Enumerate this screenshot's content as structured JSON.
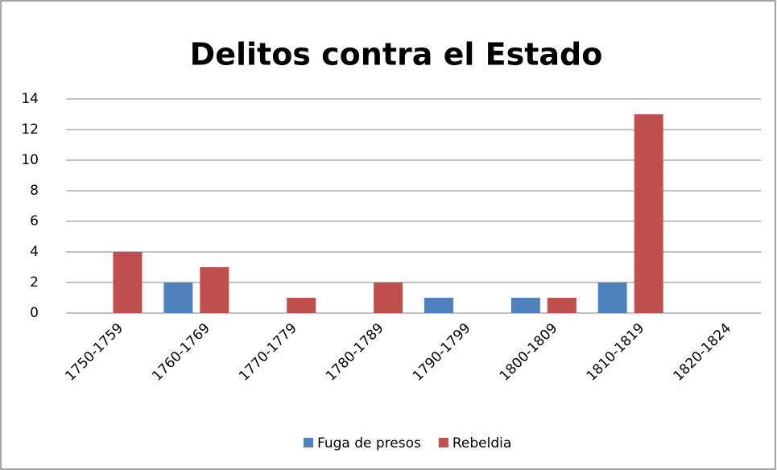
{
  "chart_data": {
    "type": "bar",
    "title": "Delitos contra el Estado",
    "categories": [
      "1750-1759",
      "1760-1769",
      "1770-1779",
      "1780-1789",
      "1790-1799",
      "1800-1809",
      "1810-1819",
      "1820-1824"
    ],
    "series": [
      {
        "name": "Fuga de presos",
        "color": "#4f81bd",
        "values": [
          0,
          2,
          0,
          0,
          1,
          1,
          2,
          0
        ]
      },
      {
        "name": "Rebeldia",
        "color": "#c0504d",
        "values": [
          4,
          3,
          1,
          2,
          0,
          1,
          13,
          0
        ]
      }
    ],
    "ylim": [
      0,
      14
    ],
    "yticks": [
      0,
      2,
      4,
      6,
      8,
      10,
      12,
      14
    ],
    "grid": true,
    "legend": "bottom"
  }
}
